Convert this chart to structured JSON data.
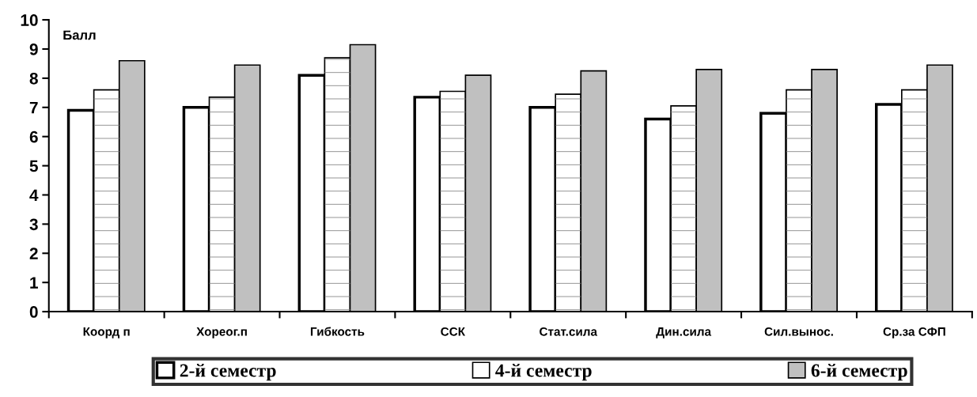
{
  "chart_data": {
    "type": "bar",
    "ylabel": "Балл",
    "categories": [
      "Коорд п",
      "Хореог.п",
      "Гибкость",
      "ССК",
      "Стат.сила",
      "Дин.сила",
      "Сил.вынос.",
      "Ср.за СФП"
    ],
    "series": [
      {
        "name": "2-й семестр",
        "color": "#ffffff",
        "values": [
          6.9,
          7.0,
          8.1,
          7.35,
          7.0,
          6.6,
          6.8,
          7.1
        ]
      },
      {
        "name": "4-й семестр",
        "color": "#ffffff",
        "values": [
          7.6,
          7.35,
          8.7,
          7.55,
          7.45,
          7.05,
          7.6,
          7.6
        ]
      },
      {
        "name": "6-й семестр",
        "color": "#c0c0c0",
        "values": [
          8.6,
          8.45,
          9.15,
          8.1,
          8.25,
          8.3,
          8.3,
          8.45
        ]
      }
    ],
    "ylim": [
      0,
      10
    ],
    "yticks": [
      0,
      1,
      2,
      3,
      4,
      5,
      6,
      7,
      8,
      9,
      10
    ],
    "grid": false,
    "legend": "bottom"
  }
}
